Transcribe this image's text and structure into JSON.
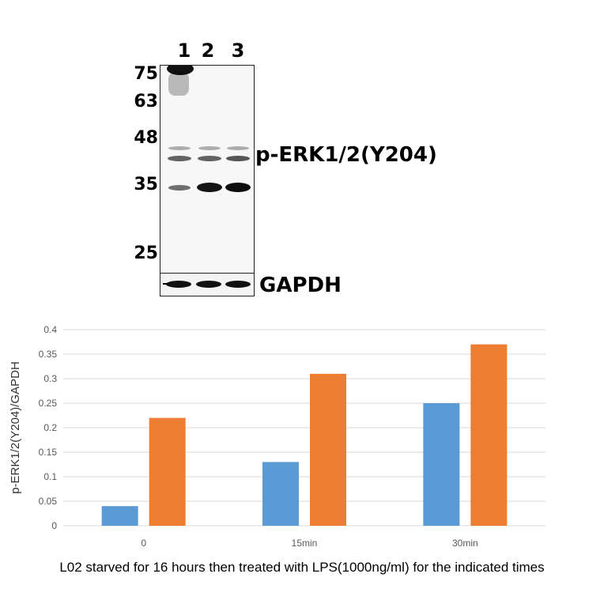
{
  "western_blot": {
    "lanes": [
      "1",
      "2",
      "3"
    ],
    "markers": [
      "75",
      "63",
      "48",
      "35",
      "25"
    ],
    "target_label": "p-ERK1/2(Y204)",
    "loading_control_label": "GAPDH"
  },
  "chart_data": {
    "type": "bar",
    "categories": [
      "0",
      "15min",
      "30min"
    ],
    "series": [
      {
        "values": [
          0.04,
          0.13,
          0.25
        ],
        "color": "#5B9BD5"
      },
      {
        "values": [
          0.22,
          0.31,
          0.37
        ],
        "color": "#ED7D31"
      }
    ],
    "ylabel": "p-ERK1/2(Y204)/GAPDH",
    "ylim": [
      0,
      0.4
    ],
    "yticks": [
      "0",
      "0.05",
      "0.1",
      "0.15",
      "0.2",
      "0.25",
      "0.3",
      "0.35",
      "0.4"
    ],
    "grid": true
  },
  "caption": "L02 starved for 16 hours then treated with LPS(1000ng/ml) for the indicated times"
}
